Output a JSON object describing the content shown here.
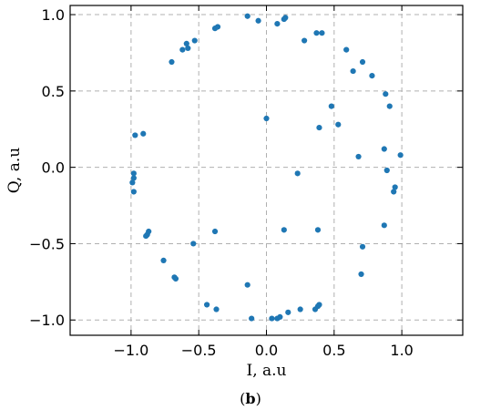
{
  "chart_data": {
    "type": "scatter",
    "title": "",
    "xlabel": "I, a.u",
    "ylabel": "Q, a.u",
    "xlim": [
      -1.45,
      1.45
    ],
    "ylim": [
      -1.1,
      1.06
    ],
    "xticks": [
      -1.0,
      -0.5,
      0.0,
      0.5,
      1.0
    ],
    "xtick_labels": [
      "−1.0",
      "−0.5",
      "0.0",
      "0.5",
      "1.0"
    ],
    "yticks": [
      -1.0,
      -0.5,
      0.0,
      0.5,
      1.0
    ],
    "ytick_labels": [
      "−1.0",
      "−0.5",
      "0.0",
      "0.5",
      "1.0"
    ],
    "grid": true,
    "marker_color": "#1f77b4",
    "series": [
      {
        "points": [
          [
            -0.14,
            0.99
          ],
          [
            -0.06,
            0.96
          ],
          [
            0.08,
            0.94
          ],
          [
            0.13,
            0.97
          ],
          [
            0.14,
            0.98
          ],
          [
            0.37,
            0.88
          ],
          [
            0.41,
            0.88
          ],
          [
            0.28,
            0.83
          ],
          [
            -0.38,
            0.91
          ],
          [
            -0.36,
            0.92
          ],
          [
            -0.53,
            0.83
          ],
          [
            -0.59,
            0.81
          ],
          [
            -0.58,
            0.78
          ],
          [
            -0.62,
            0.77
          ],
          [
            -0.7,
            0.69
          ],
          [
            0.59,
            0.77
          ],
          [
            0.71,
            0.69
          ],
          [
            0.64,
            0.63
          ],
          [
            0.78,
            0.6
          ],
          [
            0.88,
            0.48
          ],
          [
            0.91,
            0.4
          ],
          [
            0.48,
            0.4
          ],
          [
            0.53,
            0.28
          ],
          [
            0.0,
            0.32
          ],
          [
            0.39,
            0.26
          ],
          [
            -0.97,
            0.21
          ],
          [
            -0.91,
            0.22
          ],
          [
            0.87,
            0.12
          ],
          [
            0.68,
            0.07
          ],
          [
            0.99,
            0.08
          ],
          [
            0.89,
            -0.02
          ],
          [
            -0.98,
            -0.04
          ],
          [
            -0.98,
            -0.07
          ],
          [
            -0.99,
            -0.1
          ],
          [
            -0.98,
            -0.16
          ],
          [
            0.23,
            -0.04
          ],
          [
            0.95,
            -0.13
          ],
          [
            0.94,
            -0.16
          ],
          [
            -0.87,
            -0.42
          ],
          [
            -0.88,
            -0.44
          ],
          [
            -0.89,
            -0.45
          ],
          [
            -0.38,
            -0.42
          ],
          [
            0.13,
            -0.41
          ],
          [
            0.38,
            -0.41
          ],
          [
            -0.54,
            -0.5
          ],
          [
            0.87,
            -0.38
          ],
          [
            0.71,
            -0.52
          ],
          [
            -0.76,
            -0.61
          ],
          [
            -0.68,
            -0.72
          ],
          [
            -0.67,
            -0.73
          ],
          [
            0.7,
            -0.7
          ],
          [
            -0.14,
            -0.77
          ],
          [
            -0.44,
            -0.9
          ],
          [
            -0.37,
            -0.93
          ],
          [
            -0.11,
            -0.99
          ],
          [
            0.04,
            -0.99
          ],
          [
            0.08,
            -0.99
          ],
          [
            0.1,
            -0.98
          ],
          [
            0.16,
            -0.95
          ],
          [
            0.25,
            -0.93
          ],
          [
            0.36,
            -0.93
          ],
          [
            0.38,
            -0.91
          ],
          [
            0.39,
            -0.9
          ]
        ]
      }
    ]
  },
  "caption": {
    "open": "(",
    "letter": "b",
    "close": ")"
  }
}
